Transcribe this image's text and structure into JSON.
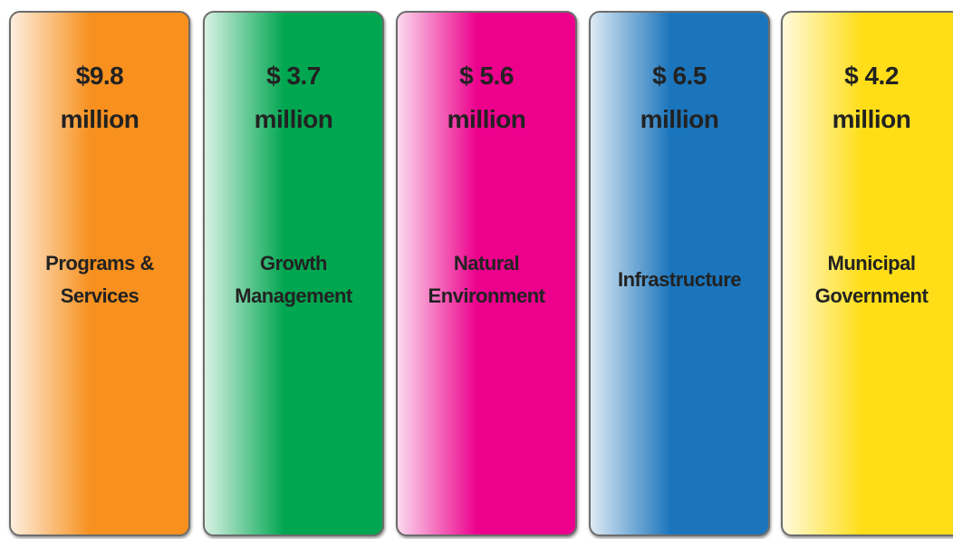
{
  "cards": [
    {
      "amount": "$9.8",
      "unit": "million",
      "label": [
        "Programs &",
        "Services"
      ],
      "color": "#f7901e"
    },
    {
      "amount": "$ 3.7",
      "unit": "million",
      "label": [
        "Growth",
        "Management"
      ],
      "color": "#00a650"
    },
    {
      "amount": "$ 5.6",
      "unit": "million",
      "label": [
        "Natural",
        "Environment"
      ],
      "color": "#ec008c"
    },
    {
      "amount": "$ 6.5",
      "unit": "million",
      "label": [
        "Infrastructure"
      ],
      "color": "#1b75bc"
    },
    {
      "amount": "$ 4.2",
      "unit": "million",
      "label": [
        "Municipal",
        "Government"
      ],
      "color": "#ffde17"
    }
  ]
}
